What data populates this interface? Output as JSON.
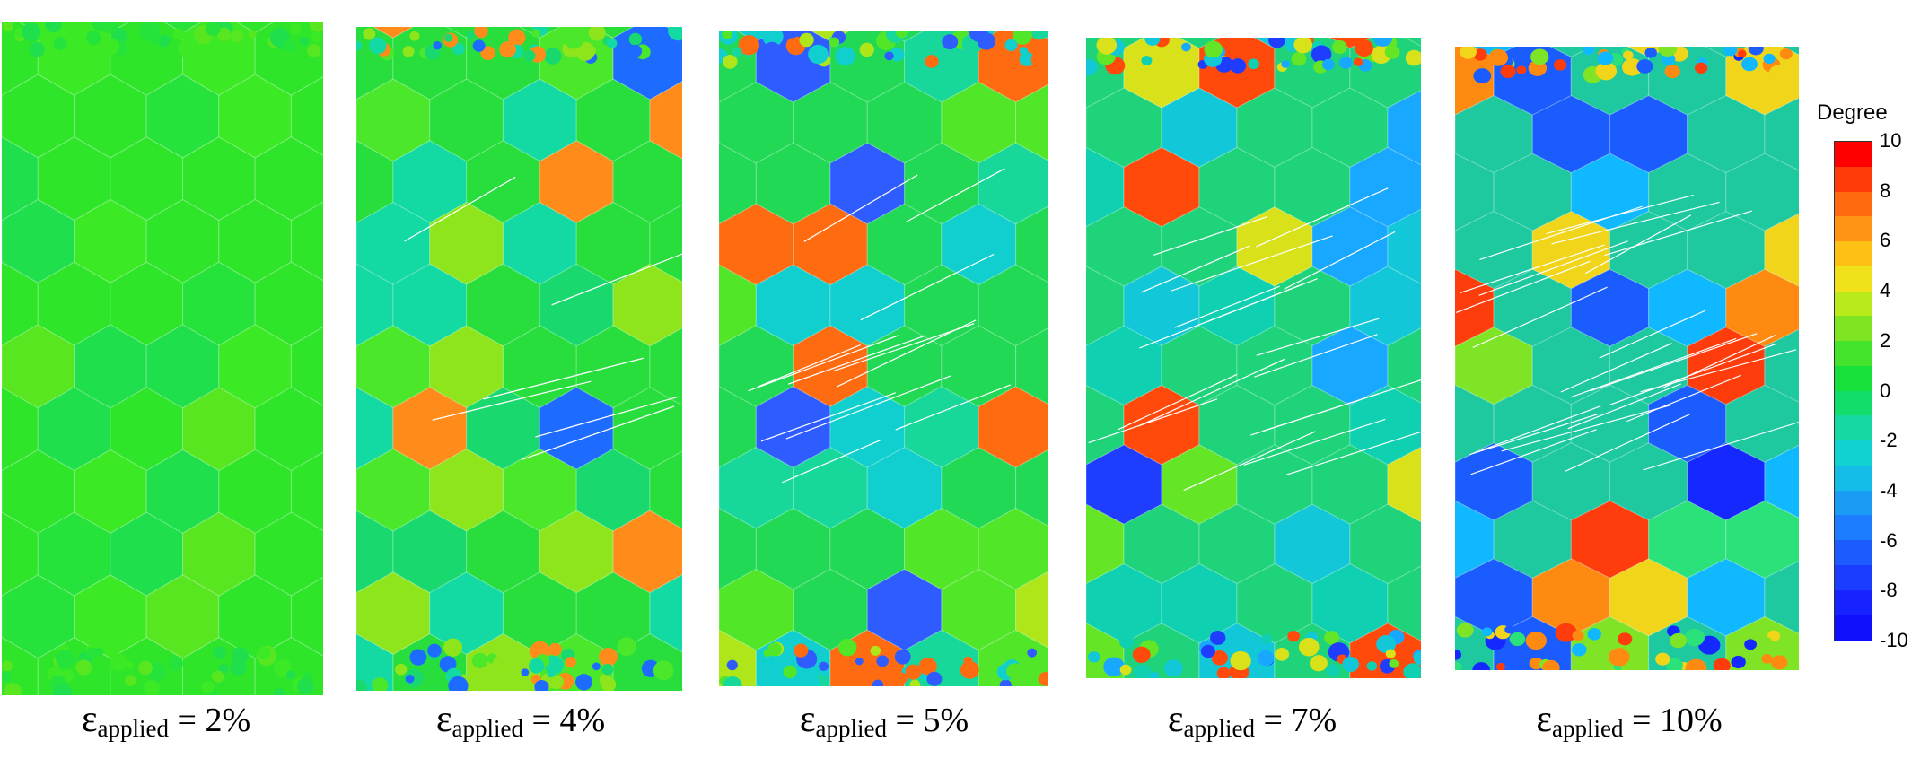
{
  "panels": [
    {
      "eps": "ε",
      "sub": "applied",
      "rest": " = 2%",
      "base": "#2ee52a",
      "tint": [
        "#25e33a",
        "#3be925",
        "#1fdf4c",
        "#58e620"
      ]
    },
    {
      "eps": "ε",
      "sub": "applied",
      "rest": " = 4%",
      "base": "#27de3c",
      "tint": [
        "#19d96e",
        "#4be72a",
        "#13d9a3",
        "#8ee51b",
        "#ff8c1a",
        "#1e6bff"
      ]
    },
    {
      "eps": "ε",
      "sub": "applied",
      "rest": " = 5%",
      "base": "#22d956",
      "tint": [
        "#17d89a",
        "#52e629",
        "#11cfcf",
        "#aee61a",
        "#ff6b10",
        "#2f5cff"
      ]
    },
    {
      "eps": "ε",
      "sub": "applied",
      "rest": " = 7%",
      "base": "#1fd37a",
      "tint": [
        "#12c8d8",
        "#64e526",
        "#19a8ff",
        "#d9e11a",
        "#ff4a0c",
        "#1f3dff",
        "#0fd0b0"
      ]
    },
    {
      "eps": "ε",
      "sub": "applied",
      "rest": " = 10%",
      "base": "#1ec9a0",
      "tint": [
        "#10b8ff",
        "#7fe426",
        "#1b5cff",
        "#ff3d0c",
        "#ff8a12",
        "#1428ff",
        "#2be27a",
        "#f0d51b"
      ]
    }
  ],
  "colorbar": {
    "title": "Degree",
    "ticks": [
      "10",
      "8",
      "6",
      "4",
      "2",
      "0",
      "-2",
      "-4",
      "-6",
      "-8",
      "-10"
    ],
    "colors": [
      "#ff0000",
      "#ff3b0a",
      "#ff6a0f",
      "#ff9413",
      "#ffc016",
      "#f0e11a",
      "#b8ea1c",
      "#7fe523",
      "#43e42b",
      "#17e03a",
      "#12dc6a",
      "#14d9a0",
      "#12d2d0",
      "#14bde8",
      "#1a9cf5",
      "#1c7cff",
      "#1c5cff",
      "#1a3dff",
      "#1622ff",
      "#1010ff"
    ]
  }
}
